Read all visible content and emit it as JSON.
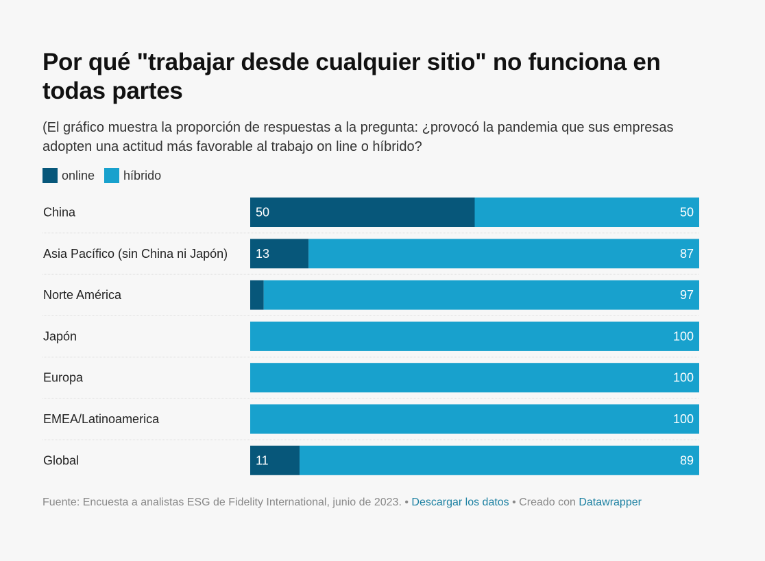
{
  "title": "Por qué \"trabajar desde cualquier sitio\" no funciona en todas partes",
  "subtitle": "(El gráfico muestra la proporción de respuestas a la pregunta: ¿provocó la pandemia que sus empresas adopten una actitud más favorable al trabajo on line o híbrido?",
  "colors": {
    "online": "#07577a",
    "hibrido": "#18a1cd",
    "separator": "#dddddd"
  },
  "footer": {
    "source": "Fuente: Encuesta a analistas ESG de Fidelity International, junio de 2023.",
    "sep1": " • ",
    "download_label": "Descargar los datos",
    "sep2": " • Creado con ",
    "tool_label": "Datawrapper"
  },
  "chart_data": {
    "type": "bar",
    "orientation": "horizontal",
    "stacked": true,
    "categories": [
      "China",
      "Asia Pacífico (sin China ni Japón)",
      "Norte América",
      "Japón",
      "Europa",
      "EMEA/Latinoamerica",
      "Global"
    ],
    "series": [
      {
        "name": "online",
        "values": [
          50,
          13,
          3,
          0,
          0,
          0,
          11
        ],
        "labels": [
          "50",
          "13",
          "",
          "",
          "",
          "",
          "11"
        ],
        "color": "#07577a"
      },
      {
        "name": "híbrido",
        "values": [
          50,
          87,
          97,
          100,
          100,
          100,
          89
        ],
        "labels": [
          "50",
          "87",
          "97",
          "100",
          "100",
          "100",
          "89"
        ],
        "color": "#18a1cd"
      }
    ],
    "xlim": [
      0,
      100
    ],
    "legend": "top-left",
    "grid": false
  }
}
